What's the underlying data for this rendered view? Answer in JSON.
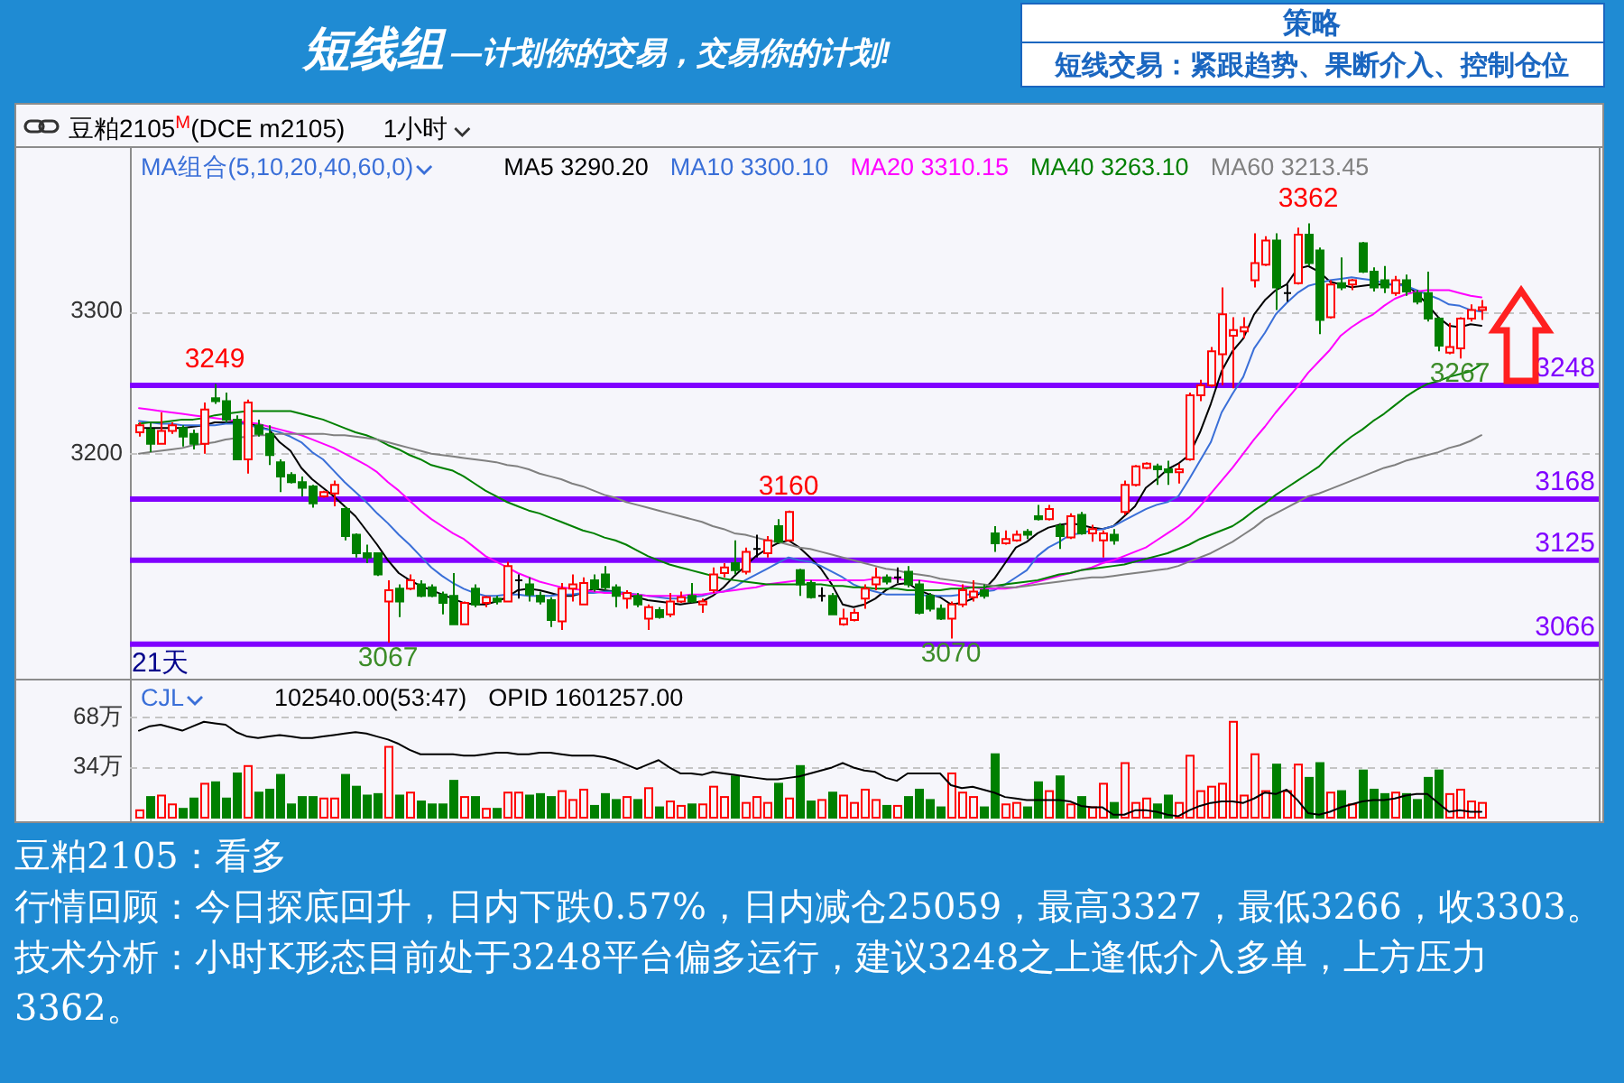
{
  "chart_data": [
    {
      "type": "candlestick",
      "title": "豆粕2105$^{M}$(DCE m2105)",
      "subtitle": "1小时",
      "legend_title": "MA组合(5,10,20,40,60,0)",
      "legend": "top",
      "grid": "y",
      "tick_labels": "y",
      "categories": [
        null,
        null,
        null,
        null,
        null,
        null,
        null,
        null,
        null,
        null,
        null,
        null,
        null,
        null,
        null,
        null,
        null,
        null,
        null,
        null,
        null,
        null,
        null,
        null,
        null,
        null,
        null,
        null,
        null,
        null,
        null,
        null,
        null,
        null,
        null,
        null,
        null,
        null,
        null,
        null,
        null,
        null,
        null,
        null,
        null,
        null,
        null,
        null,
        null,
        null,
        null,
        null,
        null,
        null,
        null,
        null,
        null,
        null,
        null,
        null,
        null,
        null,
        null,
        null,
        null,
        null,
        null,
        null,
        null,
        null,
        null,
        null,
        null,
        null,
        null,
        null,
        null,
        null,
        null,
        null,
        null,
        null,
        null,
        null,
        null,
        null,
        null,
        null,
        null,
        null,
        null,
        null,
        null,
        null,
        null,
        null,
        null,
        null,
        null,
        null,
        null,
        null,
        null,
        null,
        null,
        null,
        null,
        null,
        null,
        null,
        null,
        null,
        null,
        null,
        null,
        null,
        null,
        null,
        null,
        null,
        null,
        null,
        null,
        null,
        null
      ],
      "ohlc": [
        [
          3215,
          3222,
          3212,
          3220
        ],
        [
          3217,
          3222,
          3201,
          3207
        ],
        [
          3207,
          3229,
          3207,
          3216
        ],
        [
          3216,
          3222,
          3214,
          3220
        ],
        [
          3218,
          3220,
          3205,
          3212
        ],
        [
          3214,
          3217,
          3203,
          3207
        ],
        [
          3207,
          3236,
          3200,
          3231
        ],
        [
          3239,
          3249,
          3235,
          3237
        ],
        [
          3237,
          3243,
          3222,
          3224
        ],
        [
          3224,
          3227,
          3196,
          3196
        ],
        [
          3196,
          3238,
          3186,
          3236
        ],
        [
          3220,
          3224,
          3212,
          3214
        ],
        [
          3214,
          3220,
          3192,
          3199
        ],
        [
          3194,
          3196,
          3173,
          3184
        ],
        [
          3185,
          3187,
          3179,
          3180
        ],
        [
          3180,
          3184,
          3170,
          3176
        ],
        [
          3177,
          3178,
          3162,
          3165
        ],
        [
          3170,
          3174,
          3169,
          3173
        ],
        [
          3172,
          3181,
          3163,
          3178
        ],
        [
          3161,
          3163,
          3139,
          3142
        ],
        [
          3143,
          3144,
          3127,
          3130
        ],
        [
          3130,
          3136,
          3123,
          3127
        ],
        [
          3130,
          3130,
          3114,
          3115
        ],
        [
          3096,
          3111,
          3067,
          3104
        ],
        [
          3105,
          3108,
          3085,
          3096
        ],
        [
          3105,
          3115,
          3104,
          3111
        ],
        [
          3108,
          3111,
          3099,
          3100
        ],
        [
          3106,
          3108,
          3099,
          3100
        ],
        [
          3101,
          3103,
          3087,
          3095
        ],
        [
          3100,
          3116,
          3080,
          3080
        ],
        [
          3080,
          3096,
          3080,
          3095
        ],
        [
          3105,
          3108,
          3092,
          3094
        ],
        [
          3095,
          3100,
          3092,
          3099
        ],
        [
          3098,
          3100,
          3094,
          3096
        ],
        [
          3096,
          3124,
          3096,
          3121
        ],
        [
          3111,
          3115,
          3098,
          3111
        ],
        [
          3108,
          3113,
          3096,
          3101
        ],
        [
          3100,
          3103,
          3094,
          3096
        ],
        [
          3097,
          3099,
          3078,
          3083
        ],
        [
          3082,
          3109,
          3076,
          3105
        ],
        [
          3105,
          3115,
          3096,
          3108
        ],
        [
          3094,
          3113,
          3094,
          3109
        ],
        [
          3111,
          3115,
          3103,
          3105
        ],
        [
          3115,
          3121,
          3104,
          3106
        ],
        [
          3106,
          3108,
          3092,
          3100
        ],
        [
          3098,
          3104,
          3091,
          3102
        ],
        [
          3100,
          3102,
          3092,
          3094
        ],
        [
          3084,
          3094,
          3076,
          3092
        ],
        [
          3090,
          3092,
          3084,
          3085
        ],
        [
          3087,
          3102,
          3085,
          3096
        ],
        [
          3096,
          3103,
          3095,
          3099
        ],
        [
          3100,
          3109,
          3095,
          3096
        ],
        [
          3094,
          3098,
          3088,
          3096
        ],
        [
          3104,
          3120,
          3102,
          3115
        ],
        [
          3116,
          3123,
          3113,
          3120
        ],
        [
          3123,
          3139,
          3115,
          3118
        ],
        [
          3117,
          3134,
          3115,
          3131
        ],
        [
          3133,
          3143,
          3127,
          3133
        ],
        [
          3130,
          3142,
          3127,
          3139
        ],
        [
          3149,
          3154,
          3137,
          3138
        ],
        [
          3139,
          3160,
          3138,
          3159
        ],
        [
          3118,
          3119,
          3100,
          3108
        ],
        [
          3109,
          3111,
          3098,
          3099
        ],
        [
          3100,
          3106,
          3096,
          3100
        ],
        [
          3100,
          3102,
          3087,
          3087
        ],
        [
          3080,
          3091,
          3079,
          3084
        ],
        [
          3083,
          3091,
          3082,
          3088
        ],
        [
          3098,
          3108,
          3091,
          3105
        ],
        [
          3108,
          3120,
          3104,
          3113
        ],
        [
          3113,
          3115,
          3108,
          3110
        ],
        [
          3113,
          3120,
          3109,
          3113
        ],
        [
          3117,
          3121,
          3106,
          3108
        ],
        [
          3108,
          3111,
          3087,
          3088
        ],
        [
          3100,
          3102,
          3089,
          3091
        ],
        [
          3091,
          3094,
          3083,
          3084
        ],
        [
          3084,
          3096,
          3070,
          3094
        ],
        [
          3094,
          3108,
          3092,
          3104
        ],
        [
          3099,
          3111,
          3096,
          3103
        ],
        [
          3104,
          3108,
          3098,
          3100
        ],
        [
          3144,
          3149,
          3131,
          3137
        ],
        [
          3137,
          3146,
          3136,
          3140
        ],
        [
          3139,
          3146,
          3138,
          3143
        ],
        [
          3145,
          3147,
          3140,
          3143
        ],
        [
          3156,
          3164,
          3153,
          3154
        ],
        [
          3154,
          3164,
          3153,
          3161
        ],
        [
          3149,
          3151,
          3133,
          3142
        ],
        [
          3141,
          3158,
          3140,
          3156
        ],
        [
          3157,
          3159,
          3143,
          3144
        ],
        [
          3144,
          3150,
          3138,
          3147
        ],
        [
          3139,
          3146,
          3127,
          3144
        ],
        [
          3143,
          3147,
          3136,
          3139
        ],
        [
          3159,
          3181,
          3157,
          3178
        ],
        [
          3178,
          3192,
          3177,
          3191
        ],
        [
          3190,
          3194,
          3189,
          3193
        ],
        [
          3191,
          3193,
          3178,
          3189
        ],
        [
          3189,
          3195,
          3178,
          3187
        ],
        [
          3187,
          3193,
          3179,
          3189
        ],
        [
          3196,
          3243,
          3195,
          3241
        ],
        [
          3241,
          3252,
          3237,
          3248
        ],
        [
          3248,
          3275,
          3247,
          3272
        ],
        [
          3270,
          3317,
          3248,
          3298
        ],
        [
          3283,
          3296,
          3246,
          3287
        ],
        [
          3286,
          3296,
          3281,
          3289
        ],
        [
          3322,
          3355,
          3317,
          3334
        ],
        [
          3333,
          3353,
          3332,
          3350
        ],
        [
          3350,
          3355,
          3301,
          3317
        ],
        [
          3313,
          3319,
          3307,
          3313
        ],
        [
          3320,
          3359,
          3319,
          3354
        ],
        [
          3354,
          3362,
          3332,
          3334
        ],
        [
          3343,
          3345,
          3284,
          3294
        ],
        [
          3296,
          3322,
          3295,
          3319
        ],
        [
          3320,
          3338,
          3315,
          3317
        ],
        [
          3319,
          3323,
          3315,
          3322
        ],
        [
          3348,
          3349,
          3327,
          3328
        ],
        [
          3328,
          3331,
          3314,
          3317
        ],
        [
          3322,
          3332,
          3313,
          3317
        ],
        [
          3313,
          3325,
          3311,
          3322
        ],
        [
          3322,
          3326,
          3311,
          3314
        ],
        [
          3313,
          3315,
          3305,
          3307
        ],
        [
          3313,
          3328,
          3293,
          3295
        ],
        [
          3295,
          3296,
          3272,
          3276
        ],
        [
          3271,
          3292,
          3270,
          3275
        ],
        [
          3274,
          3296,
          3267,
          3295
        ],
        [
          3295,
          3305,
          3293,
          3301
        ],
        [
          3301,
          3308,
          3294,
          3303
        ]
      ],
      "colors": [
        "#ff0000",
        "#008000",
        "#ff0000",
        "#ff0000",
        "#008000",
        "#008000",
        "#ff0000",
        "#008000",
        "#008000",
        "#008000",
        "#ff0000",
        "#008000",
        "#008000",
        "#008000",
        "#008000",
        "#008000",
        "#008000",
        "#ff0000",
        "#ff0000",
        "#008000",
        "#008000",
        "#008000",
        "#008000",
        "#ff0000",
        "#008000",
        "#ff0000",
        "#008000",
        "#008000",
        "#008000",
        "#008000",
        "#ff0000",
        "#008000",
        "#ff0000",
        "#008000",
        "#ff0000",
        "#000000",
        "#008000",
        "#008000",
        "#008000",
        "#ff0000",
        "#ff0000",
        "#ff0000",
        "#008000",
        "#008000",
        "#008000",
        "#ff0000",
        "#008000",
        "#ff0000",
        "#008000",
        "#ff0000",
        "#ff0000",
        "#008000",
        "#ff0000",
        "#ff0000",
        "#ff0000",
        "#008000",
        "#ff0000",
        "#000000",
        "#ff0000",
        "#008000",
        "#ff0000",
        "#008000",
        "#008000",
        "#000000",
        "#008000",
        "#ff0000",
        "#ff0000",
        "#ff0000",
        "#ff0000",
        "#008000",
        "#000000",
        "#008000",
        "#008000",
        "#008000",
        "#008000",
        "#ff0000",
        "#ff0000",
        "#ff0000",
        "#008000",
        "#008000",
        "#ff0000",
        "#ff0000",
        "#008000",
        "#008000",
        "#ff0000",
        "#008000",
        "#ff0000",
        "#008000",
        "#ff0000",
        "#ff0000",
        "#008000",
        "#ff0000",
        "#ff0000",
        "#ff0000",
        "#008000",
        "#008000",
        "#ff0000",
        "#ff0000",
        "#ff0000",
        "#ff0000",
        "#ff0000",
        "#ff0000",
        "#ff0000",
        "#ff0000",
        "#ff0000",
        "#008000",
        "#000000",
        "#ff0000",
        "#008000",
        "#008000",
        "#ff0000",
        "#008000",
        "#ff0000",
        "#008000",
        "#008000",
        "#008000",
        "#ff0000",
        "#008000",
        "#008000",
        "#008000",
        "#008000",
        "#ff0000",
        "#ff0000",
        "#ff0000",
        "#ff0000"
      ],
      "series": [
        {
          "name": "MA5 3290.20",
          "type": "line",
          "color": "#000000",
          "values": [
            3218,
            3218,
            3218,
            3218,
            3218,
            3219,
            3220,
            3222,
            3222,
            3222,
            3222,
            3219,
            3217,
            3208,
            3202,
            3190,
            3182,
            3176,
            3170,
            3163,
            3156,
            3146,
            3136,
            3125,
            3116,
            3111,
            3107,
            3104,
            3101,
            3098,
            3095,
            3094,
            3094,
            3096,
            3099,
            3104,
            3105,
            3104,
            3102,
            3100,
            3100,
            3102,
            3105,
            3104,
            3103,
            3101,
            3099,
            3097,
            3096,
            3095,
            3094,
            3095,
            3096,
            3100,
            3106,
            3114,
            3121,
            3128,
            3133,
            3137,
            3139,
            3134,
            3127,
            3119,
            3108,
            3094,
            3092,
            3094,
            3098,
            3104,
            3108,
            3109,
            3104,
            3101,
            3099,
            3094,
            3095,
            3098,
            3104,
            3112,
            3123,
            3134,
            3138,
            3144,
            3148,
            3150,
            3151,
            3150,
            3148,
            3147,
            3149,
            3156,
            3163,
            3176,
            3182,
            3189,
            3193,
            3199,
            3215,
            3235,
            3258,
            3272,
            3281,
            3298,
            3308,
            3315,
            3319,
            3330,
            3332,
            3328,
            3321,
            3319,
            3317,
            3318,
            3319,
            3319,
            3319,
            3319,
            3313,
            3305,
            3296,
            3290,
            3289,
            3291,
            3290
          ]
        },
        {
          "name": "MA10 3300.10",
          "type": "line",
          "color": "#3a6fd8",
          "values": [
            3223,
            3222,
            3221,
            3221,
            3220,
            3220,
            3220,
            3220,
            3221,
            3221,
            3221,
            3218,
            3217,
            3215,
            3212,
            3208,
            3201,
            3196,
            3188,
            3180,
            3173,
            3166,
            3158,
            3151,
            3143,
            3136,
            3128,
            3120,
            3114,
            3109,
            3105,
            3102,
            3100,
            3100,
            3101,
            3101,
            3100,
            3100,
            3100,
            3101,
            3101,
            3102,
            3102,
            3103,
            3103,
            3102,
            3101,
            3100,
            3099,
            3098,
            3098,
            3099,
            3100,
            3102,
            3103,
            3106,
            3111,
            3115,
            3119,
            3123,
            3127,
            3125,
            3124,
            3121,
            3117,
            3113,
            3108,
            3105,
            3103,
            3101,
            3101,
            3101,
            3101,
            3100,
            3100,
            3100,
            3101,
            3101,
            3103,
            3104,
            3108,
            3113,
            3118,
            3128,
            3134,
            3138,
            3143,
            3144,
            3146,
            3147,
            3149,
            3153,
            3157,
            3161,
            3164,
            3166,
            3170,
            3182,
            3195,
            3208,
            3229,
            3242,
            3254,
            3274,
            3285,
            3298,
            3306,
            3313,
            3318,
            3320,
            3322,
            3323,
            3324,
            3323,
            3322,
            3320,
            3319,
            3318,
            3315,
            3312,
            3309,
            3305,
            3304,
            3301,
            3300
          ]
        },
        {
          "name": "MA20 3310.15",
          "type": "line",
          "color": "#ff00ff",
          "values": [
            3232,
            3231,
            3230,
            3229,
            3228,
            3227,
            3226,
            3225,
            3224,
            3223,
            3222,
            3221,
            3219,
            3217,
            3215,
            3213,
            3210,
            3207,
            3204,
            3200,
            3196,
            3192,
            3187,
            3180,
            3174,
            3167,
            3160,
            3154,
            3149,
            3144,
            3140,
            3134,
            3128,
            3124,
            3120,
            3116,
            3113,
            3110,
            3108,
            3106,
            3105,
            3104,
            3103,
            3102,
            3102,
            3101,
            3101,
            3100,
            3100,
            3100,
            3100,
            3101,
            3101,
            3102,
            3103,
            3104,
            3105,
            3106,
            3108,
            3109,
            3110,
            3111,
            3111,
            3111,
            3111,
            3111,
            3111,
            3111,
            3112,
            3113,
            3112,
            3111,
            3111,
            3110,
            3109,
            3108,
            3107,
            3106,
            3105,
            3105,
            3105,
            3106,
            3108,
            3110,
            3112,
            3114,
            3116,
            3118,
            3120,
            3123,
            3125,
            3128,
            3131,
            3134,
            3139,
            3144,
            3149,
            3155,
            3163,
            3172,
            3181,
            3190,
            3200,
            3210,
            3219,
            3229,
            3238,
            3247,
            3257,
            3265,
            3273,
            3283,
            3289,
            3294,
            3298,
            3304,
            3309,
            3312,
            3314,
            3315,
            3315,
            3315,
            3313,
            3311,
            3310
          ]
        },
        {
          "name": "MA40 3263.10",
          "type": "line",
          "color": "#008000",
          "values": [
            3221,
            3222,
            3222,
            3223,
            3224,
            3224,
            3225,
            3227,
            3228,
            3229,
            3230,
            3230,
            3230,
            3230,
            3230,
            3228,
            3226,
            3224,
            3221,
            3218,
            3215,
            3213,
            3210,
            3206,
            3203,
            3199,
            3196,
            3192,
            3190,
            3188,
            3184,
            3179,
            3174,
            3170,
            3166,
            3163,
            3160,
            3158,
            3155,
            3152,
            3149,
            3146,
            3144,
            3141,
            3139,
            3136,
            3132,
            3128,
            3125,
            3122,
            3120,
            3118,
            3116,
            3114,
            3112,
            3111,
            3110,
            3109,
            3108,
            3108,
            3108,
            3108,
            3108,
            3108,
            3107,
            3107,
            3106,
            3106,
            3105,
            3105,
            3105,
            3104,
            3104,
            3104,
            3104,
            3105,
            3105,
            3106,
            3106,
            3107,
            3108,
            3109,
            3110,
            3111,
            3113,
            3115,
            3116,
            3118,
            3119,
            3120,
            3121,
            3122,
            3124,
            3126,
            3128,
            3130,
            3133,
            3136,
            3140,
            3143,
            3146,
            3149,
            3154,
            3160,
            3165,
            3171,
            3176,
            3181,
            3186,
            3191,
            3199,
            3206,
            3212,
            3217,
            3223,
            3228,
            3234,
            3240,
            3245,
            3249,
            3251,
            3254,
            3256,
            3258,
            3263
          ]
        },
        {
          "name": "MA60 3213.45",
          "type": "line",
          "color": "#808080",
          "values": [
            3200,
            3201,
            3202,
            3203,
            3204,
            3206,
            3207,
            3208,
            3210,
            3211,
            3212,
            3213,
            3213,
            3214,
            3214,
            3214,
            3214,
            3214,
            3213,
            3213,
            3212,
            3211,
            3210,
            3208,
            3206,
            3204,
            3202,
            3200,
            3199,
            3198,
            3197,
            3196,
            3195,
            3194,
            3192,
            3191,
            3189,
            3186,
            3184,
            3182,
            3179,
            3177,
            3174,
            3171,
            3169,
            3166,
            3164,
            3162,
            3160,
            3158,
            3156,
            3154,
            3152,
            3149,
            3147,
            3144,
            3143,
            3141,
            3139,
            3138,
            3136,
            3134,
            3133,
            3131,
            3129,
            3127,
            3125,
            3123,
            3121,
            3119,
            3118,
            3116,
            3115,
            3114,
            3112,
            3111,
            3110,
            3109,
            3108,
            3107,
            3106,
            3106,
            3107,
            3108,
            3109,
            3110,
            3111,
            3112,
            3113,
            3113,
            3114,
            3115,
            3116,
            3117,
            3118,
            3119,
            3121,
            3124,
            3127,
            3130,
            3134,
            3138,
            3143,
            3148,
            3154,
            3158,
            3162,
            3166,
            3170,
            3172,
            3175,
            3178,
            3181,
            3184,
            3187,
            3190,
            3192,
            3195,
            3197,
            3199,
            3201,
            3204,
            3206,
            3209,
            3213
          ]
        }
      ],
      "ylim": [
        3043,
        3415
      ],
      "yticks": [
        3200,
        3300
      ],
      "ref_lines": [
        {
          "axis": "y",
          "value": 3248,
          "label": "3248",
          "color": "#8000ff"
        },
        {
          "axis": "y",
          "value": 3168,
          "label": "3168",
          "color": "#8000ff"
        },
        {
          "axis": "y",
          "value": 3125,
          "label": "3125",
          "color": "#8000ff"
        },
        {
          "axis": "y",
          "value": 3066,
          "label": "3066",
          "color": "#8000ff"
        }
      ],
      "annotations": [
        {
          "text": "3249",
          "y": 3249
        },
        {
          "text": "3160",
          "y": 3160
        },
        {
          "text": "3362",
          "y": 3362
        },
        {
          "text": "3067",
          "y": 3067
        },
        {
          "text": "3070",
          "y": 3070
        },
        {
          "text": "3267",
          "y": 3267
        },
        "21天",
        "短线组",
        "—计划你的交易，交易你的计划!",
        "策略",
        "短线交易：紧跟趋势、果断介入、控制仓位",
        "豆粕2105：看多",
        "行情回顾：今日探底回升，日内下跌0.57%，日内减仓25059，最高3327，最低3266，收3303。",
        "技术分析：小时K形态目前处于3248平台偏多运行，建议3248之上逢低介入多单，上方压力3362。"
      ]
    },
    {
      "type": "bar",
      "legend_title": "CJL",
      "legend": "top left",
      "grid": "y",
      "tick_labels": "y",
      "categories": [
        null,
        null,
        null,
        null,
        null,
        null,
        null,
        null,
        null,
        null,
        null,
        null,
        null,
        null,
        null,
        null,
        null,
        null,
        null,
        null,
        null,
        null,
        null,
        null,
        null,
        null,
        null,
        null,
        null,
        null,
        null,
        null,
        null,
        null,
        null,
        null,
        null,
        null,
        null,
        null,
        null,
        null,
        null,
        null,
        null,
        null,
        null,
        null,
        null,
        null,
        null,
        null,
        null,
        null,
        null,
        null,
        null,
        null,
        null,
        null,
        null,
        null,
        null,
        null,
        null,
        null,
        null,
        null,
        null,
        null,
        null,
        null,
        null,
        null,
        null,
        null,
        null,
        null,
        null,
        null,
        null,
        null,
        null,
        null,
        null,
        null,
        null,
        null,
        null,
        null,
        null,
        null,
        null,
        null,
        null,
        null,
        null,
        null,
        null,
        null,
        null,
        null,
        null,
        null,
        null,
        null,
        null,
        null,
        null,
        null,
        null,
        null,
        null,
        null,
        null,
        null,
        null,
        null,
        null,
        null,
        null,
        null,
        null,
        null,
        null
      ],
      "series": [
        {
          "type": "bar",
          "colors": [
            "#ff0000",
            "#008000",
            "#ff0000",
            "#ff0000",
            "#008000",
            "#008000",
            "#ff0000",
            "#008000",
            "#008000",
            "#008000",
            "#ff0000",
            "#008000",
            "#008000",
            "#008000",
            "#008000",
            "#008000",
            "#008000",
            "#ff0000",
            "#ff0000",
            "#008000",
            "#008000",
            "#008000",
            "#008000",
            "#ff0000",
            "#008000",
            "#ff0000",
            "#008000",
            "#008000",
            "#008000",
            "#008000",
            "#ff0000",
            "#008000",
            "#ff0000",
            "#008000",
            "#ff0000",
            "#ff0000",
            "#008000",
            "#008000",
            "#008000",
            "#ff0000",
            "#ff0000",
            "#ff0000",
            "#008000",
            "#008000",
            "#008000",
            "#ff0000",
            "#008000",
            "#ff0000",
            "#008000",
            "#ff0000",
            "#ff0000",
            "#008000",
            "#ff0000",
            "#ff0000",
            "#ff0000",
            "#008000",
            "#ff0000",
            "#ff0000",
            "#ff0000",
            "#008000",
            "#ff0000",
            "#008000",
            "#008000",
            "#ff0000",
            "#008000",
            "#ff0000",
            "#ff0000",
            "#ff0000",
            "#ff0000",
            "#008000",
            "#ff0000",
            "#008000",
            "#008000",
            "#008000",
            "#008000",
            "#ff0000",
            "#ff0000",
            "#ff0000",
            "#008000",
            "#008000",
            "#ff0000",
            "#ff0000",
            "#008000",
            "#008000",
            "#ff0000",
            "#008000",
            "#ff0000",
            "#008000",
            "#ff0000",
            "#ff0000",
            "#008000",
            "#ff0000",
            "#ff0000",
            "#ff0000",
            "#008000",
            "#008000",
            "#ff0000",
            "#ff0000",
            "#ff0000",
            "#ff0000",
            "#ff0000",
            "#ff0000",
            "#ff0000",
            "#ff0000",
            "#ff0000",
            "#008000",
            "#ff0000",
            "#ff0000",
            "#008000",
            "#008000",
            "#ff0000",
            "#008000",
            "#ff0000",
            "#008000",
            "#008000",
            "#008000",
            "#ff0000",
            "#008000",
            "#008000",
            "#008000",
            "#008000",
            "#ff0000",
            "#ff0000",
            "#ff0000",
            "#ff0000"
          ],
          "values": [
            5,
            14,
            15,
            9,
            6,
            13,
            23,
            24,
            13,
            30,
            35,
            17,
            19,
            29,
            9,
            14,
            14,
            13,
            13,
            29,
            21,
            15,
            16,
            48,
            15,
            17,
            11,
            9,
            9,
            25,
            14,
            14,
            6,
            6,
            17,
            17,
            15,
            16,
            14,
            18,
            12,
            19,
            8,
            16,
            12,
            14,
            12,
            20,
            7,
            11,
            8,
            9,
            9,
            21,
            14,
            28,
            10,
            14,
            10,
            23,
            13,
            35,
            11,
            12,
            17,
            15,
            10,
            19,
            12,
            8,
            8,
            14,
            19,
            12,
            7,
            30,
            17,
            14,
            7,
            43,
            9,
            10,
            7,
            24,
            18,
            28,
            9,
            14,
            7,
            23,
            10,
            37,
            10,
            13,
            9,
            15,
            10,
            42,
            18,
            21,
            23,
            65,
            15,
            43,
            18,
            36,
            18,
            36,
            27,
            37,
            17,
            18,
            9,
            32,
            19,
            16,
            17,
            16,
            12,
            27,
            32,
            16,
            19,
            11,
            10
          ]
        },
        {
          "type": "line",
          "name": "OPID 1601257.00",
          "color": "#000000",
          "values": [
            59,
            62,
            63,
            61,
            59,
            62,
            65,
            64,
            63,
            58,
            55,
            54,
            55,
            56,
            55,
            54,
            54,
            55,
            56,
            57,
            58,
            57,
            55,
            53,
            50,
            46,
            43,
            43,
            43,
            43,
            42,
            42,
            43,
            44,
            44,
            43,
            43,
            44,
            44,
            43,
            42,
            42,
            42,
            41,
            39,
            36,
            33,
            36,
            39,
            34,
            30,
            30,
            29,
            31,
            30,
            29,
            28,
            27,
            26,
            26,
            27,
            28,
            30,
            32,
            34,
            37,
            34,
            32,
            31,
            27,
            25,
            30,
            30,
            30,
            30,
            22,
            20,
            21,
            19,
            17,
            14,
            13,
            12,
            12,
            12,
            12,
            11,
            8,
            7,
            7,
            2,
            2,
            5,
            5,
            4,
            2,
            1,
            5,
            8,
            10,
            11,
            11,
            10,
            13,
            17,
            16,
            19,
            12,
            3,
            2,
            4,
            7,
            9,
            11,
            12,
            12,
            13,
            15,
            16,
            16,
            10,
            4,
            5,
            4,
            4
          ]
        }
      ],
      "ylim": [
        0,
        93
      ],
      "yticks": [
        {
          "value": 34,
          "label": "34万"
        },
        {
          "value": 68,
          "label": "68万"
        }
      ],
      "annotations": [
        "102540.00(53:47)"
      ]
    }
  ]
}
